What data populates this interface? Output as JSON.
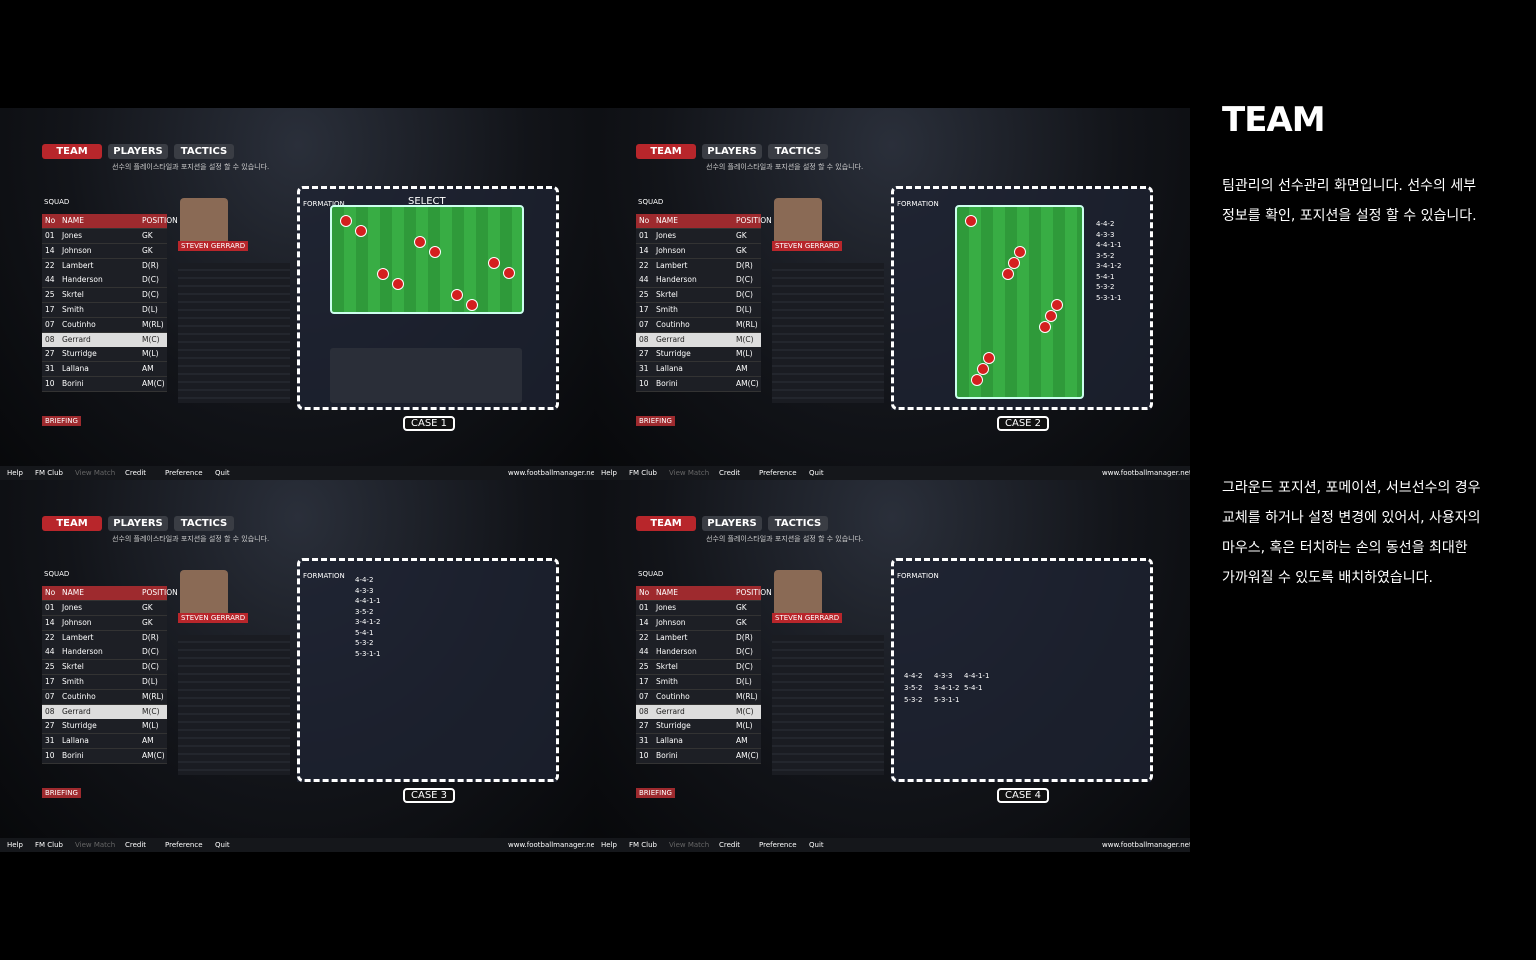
{
  "title": "TEAM",
  "description": [
    [
      "팀관리의 선수관리 화면입니다. 선수의 세부",
      "정보를 확인, 포지션을 설정 할 수 있습니다."
    ],
    [
      "그라운드 포지션, 포메이션, 서브선수의 경우",
      "교체를 하거나 설정 변경에 있어서, 사용자의",
      "마우스, 혹은 터치하는 손의 동선을 최대한",
      "가까워질 수 있도록 배치하였습니다."
    ]
  ],
  "tabs": [
    "TEAM",
    "PLAYERS",
    "TACTICS"
  ],
  "subtitle": "선수의 플레이스타일과 포지션을 설정 할 수 있습니다.",
  "squad": {
    "label": "SQUAD",
    "columns": [
      "No",
      "NAME",
      "POSITION"
    ],
    "rows": [
      [
        "01",
        "Jones",
        "GK"
      ],
      [
        "14",
        "Johnson",
        "GK"
      ],
      [
        "22",
        "Lambert",
        "D(R)"
      ],
      [
        "44",
        "Handerson",
        "D(C)"
      ],
      [
        "25",
        "Skrtel",
        "D(C)"
      ],
      [
        "17",
        "Smith",
        "D(L)"
      ],
      [
        "07",
        "Coutinho",
        "M(RL)"
      ],
      [
        "08",
        "Gerrard",
        "M(C)"
      ],
      [
        "27",
        "Sturridge",
        "M(L)"
      ],
      [
        "31",
        "Lallana",
        "AM"
      ],
      [
        "10",
        "Borini",
        "AM(C)"
      ]
    ]
  },
  "player_name": "STEVEN GERRARD",
  "formation_label": "FORMATION",
  "select_label": "SELECT",
  "formations": [
    "4-4-2",
    "4-3-3",
    "4-4-1-1",
    "3-5-2",
    "3-4-1-2",
    "5-4-1",
    "5-3-2",
    "5-3-1-1"
  ],
  "cases": [
    "CASE 1",
    "CASE 2",
    "CASE 3",
    "CASE 4"
  ],
  "briefing": "BRIEFING",
  "menu": [
    "Help",
    "FM Club",
    "View Match",
    "Credit",
    "Preference",
    "Quit"
  ],
  "site": "www.footballmanager.net"
}
